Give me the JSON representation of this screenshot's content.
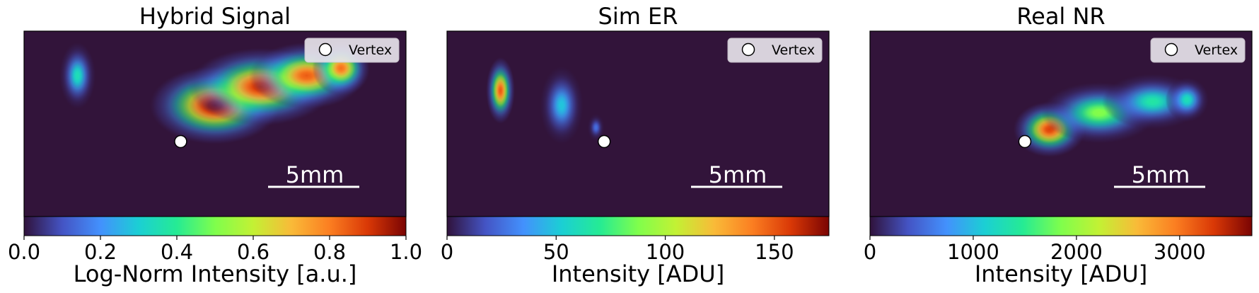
{
  "vertex_color": "#ffffff",
  "scalebar_color": "#ffffff",
  "background_color": "#32143a",
  "colormap": "turbo",
  "chart_data": [
    {
      "type": "heatmap",
      "title": "Hybrid Signal",
      "colorbar_label": "Log-Norm Intensity [a.u.]",
      "colorbar_range": [
        0.0,
        1.0
      ],
      "colorbar_ticks": [
        "0.0",
        "0.2",
        "0.4",
        "0.6",
        "0.8",
        "1.0"
      ],
      "colorbar_tick_values": [
        0.0,
        0.2,
        0.4,
        0.6,
        0.8,
        1.0
      ],
      "legend": {
        "label": "Vertex",
        "placement": "upper-right"
      },
      "scalebar_label": "5mm",
      "vertex": [
        0.41,
        0.4
      ],
      "blobs": [
        {
          "x": 0.5,
          "y": 0.6,
          "sx": 0.09,
          "sy": 0.07,
          "a": 1.0
        },
        {
          "x": 0.62,
          "y": 0.7,
          "sx": 0.1,
          "sy": 0.07,
          "a": 0.92
        },
        {
          "x": 0.74,
          "y": 0.76,
          "sx": 0.08,
          "sy": 0.06,
          "a": 0.85
        },
        {
          "x": 0.83,
          "y": 0.8,
          "sx": 0.04,
          "sy": 0.05,
          "a": 0.82
        },
        {
          "x": 0.14,
          "y": 0.76,
          "sx": 0.025,
          "sy": 0.06,
          "a": 0.35
        }
      ]
    },
    {
      "type": "heatmap",
      "title": "Sim ER",
      "colorbar_label": "Intensity [ADU]",
      "colorbar_range": [
        0,
        175
      ],
      "colorbar_ticks": [
        "0",
        "50",
        "100",
        "150"
      ],
      "colorbar_tick_values": [
        0,
        50,
        100,
        150
      ],
      "legend": {
        "label": "Vertex",
        "placement": "upper-right"
      },
      "scalebar_label": "5mm",
      "vertex": [
        72,
        40
      ],
      "blobs": [
        {
          "x": 0.14,
          "y": 0.68,
          "sx": 0.02,
          "sy": 0.06,
          "a": 150
        },
        {
          "x": 0.3,
          "y": 0.6,
          "sx": 0.03,
          "sy": 0.07,
          "a": 50
        },
        {
          "x": 0.39,
          "y": 0.48,
          "sx": 0.012,
          "sy": 0.025,
          "a": 25
        }
      ]
    },
    {
      "type": "heatmap",
      "title": "Real NR",
      "colorbar_label": "Intensity [ADU]",
      "colorbar_range": [
        0,
        3700
      ],
      "colorbar_ticks": [
        "0",
        "1000",
        "2000",
        "3000"
      ],
      "colorbar_tick_values": [
        0,
        1000,
        2000,
        3000
      ],
      "legend": {
        "label": "Vertex",
        "placement": "upper-right"
      },
      "scalebar_label": "5mm",
      "vertex": [
        1500,
        40
      ],
      "blobs": [
        {
          "x": 0.47,
          "y": 0.47,
          "sx": 0.05,
          "sy": 0.05,
          "a": 3300
        },
        {
          "x": 0.6,
          "y": 0.56,
          "sx": 0.08,
          "sy": 0.055,
          "a": 1900
        },
        {
          "x": 0.74,
          "y": 0.62,
          "sx": 0.07,
          "sy": 0.05,
          "a": 1400
        },
        {
          "x": 0.83,
          "y": 0.63,
          "sx": 0.03,
          "sy": 0.04,
          "a": 1300
        }
      ]
    }
  ]
}
